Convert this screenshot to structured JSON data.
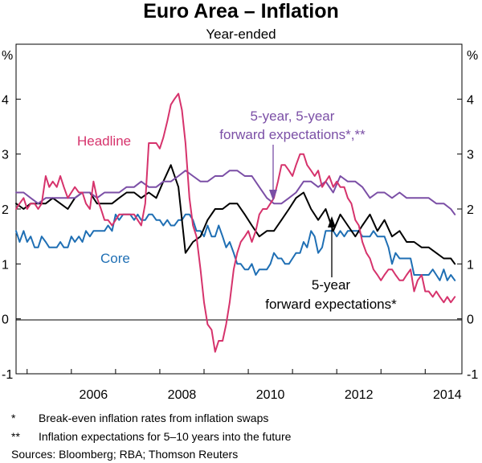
{
  "chart_data": {
    "type": "line",
    "title": "Euro Area – Inflation",
    "subtitle": "Year-ended",
    "y_unit_left": "%",
    "y_unit_right": "%",
    "ylim": [
      -1,
      5
    ],
    "y_ticks": [
      "-1",
      "0",
      "1",
      "2",
      "3",
      "4"
    ],
    "xlim": [
      2004.75,
      2014.83
    ],
    "x_ticks": [
      "2006",
      "2008",
      "2010",
      "2012",
      "2014"
    ],
    "grid": false,
    "annotations": {
      "headline": "Headline",
      "core": "Core",
      "fwd55_line1": "5-year, 5-year",
      "fwd55_line2": "forward expectations*,**",
      "fwd5_line1": "5-year",
      "fwd5_line2": "forward expectations*"
    },
    "series": [
      {
        "name": "Headline",
        "color": "#d6336c",
        "x": [
          2004.75,
          2004.83,
          2004.92,
          2005.0,
          2005.08,
          2005.17,
          2005.25,
          2005.33,
          2005.42,
          2005.5,
          2005.58,
          2005.67,
          2005.75,
          2005.83,
          2005.92,
          2006.0,
          2006.08,
          2006.17,
          2006.25,
          2006.33,
          2006.42,
          2006.5,
          2006.58,
          2006.67,
          2006.75,
          2006.83,
          2006.92,
          2007.0,
          2007.08,
          2007.17,
          2007.25,
          2007.33,
          2007.42,
          2007.5,
          2007.58,
          2007.67,
          2007.75,
          2007.83,
          2007.92,
          2008.0,
          2008.08,
          2008.17,
          2008.25,
          2008.33,
          2008.42,
          2008.5,
          2008.58,
          2008.67,
          2008.75,
          2008.83,
          2008.92,
          2009.0,
          2009.08,
          2009.17,
          2009.25,
          2009.33,
          2009.42,
          2009.5,
          2009.58,
          2009.67,
          2009.75,
          2009.83,
          2009.92,
          2010.0,
          2010.08,
          2010.17,
          2010.25,
          2010.33,
          2010.42,
          2010.5,
          2010.58,
          2010.67,
          2010.75,
          2010.83,
          2010.92,
          2011.0,
          2011.08,
          2011.17,
          2011.25,
          2011.33,
          2011.42,
          2011.5,
          2011.58,
          2011.67,
          2011.75,
          2011.83,
          2011.92,
          2012.0,
          2012.08,
          2012.17,
          2012.25,
          2012.33,
          2012.42,
          2012.5,
          2012.58,
          2012.67,
          2012.75,
          2012.83,
          2012.92,
          2013.0,
          2013.08,
          2013.17,
          2013.25,
          2013.33,
          2013.42,
          2013.5,
          2013.58,
          2013.67,
          2013.75,
          2013.83,
          2013.92,
          2014.0,
          2014.08,
          2014.17,
          2014.25,
          2014.33,
          2014.42,
          2014.5,
          2014.58,
          2014.67
        ],
        "values": [
          2.0,
          2.1,
          2.2,
          2.0,
          2.1,
          2.1,
          2.0,
          2.1,
          2.6,
          2.4,
          2.5,
          2.4,
          2.6,
          2.4,
          2.2,
          2.3,
          2.4,
          2.3,
          2.3,
          2.1,
          2.0,
          2.5,
          2.2,
          2.0,
          1.8,
          1.8,
          1.7,
          1.8,
          1.9,
          1.9,
          1.9,
          1.9,
          1.9,
          1.8,
          1.7,
          2.1,
          3.2,
          3.2,
          3.2,
          3.1,
          3.3,
          3.6,
          3.9,
          4.0,
          4.1,
          3.8,
          3.2,
          2.2,
          1.7,
          1.5,
          0.9,
          0.3,
          -0.1,
          -0.2,
          -0.6,
          -0.4,
          -0.4,
          -0.1,
          0.3,
          0.9,
          1.2,
          1.4,
          1.5,
          1.6,
          1.4,
          1.6,
          1.9,
          2.0,
          2.0,
          2.1,
          2.2,
          2.5,
          2.8,
          2.8,
          2.7,
          2.6,
          2.8,
          3.0,
          3.0,
          2.8,
          2.7,
          2.6,
          2.7,
          2.4,
          2.5,
          2.6,
          2.4,
          2.5,
          2.4,
          2.4,
          2.2,
          2.1,
          1.8,
          1.7,
          1.4,
          1.2,
          1.1,
          0.9,
          0.8,
          0.7,
          0.8,
          0.9,
          0.9,
          0.8,
          0.7,
          0.7,
          0.8,
          0.9,
          0.5,
          0.7,
          0.8,
          0.5,
          0.5,
          0.4,
          0.5,
          0.4,
          0.3,
          0.4,
          0.3,
          0.4
        ]
      },
      {
        "name": "Core",
        "color": "#1f6fb4",
        "x": [
          2004.75,
          2004.83,
          2004.92,
          2005.0,
          2005.08,
          2005.17,
          2005.25,
          2005.33,
          2005.42,
          2005.5,
          2005.58,
          2005.67,
          2005.75,
          2005.83,
          2005.92,
          2006.0,
          2006.08,
          2006.17,
          2006.25,
          2006.33,
          2006.42,
          2006.5,
          2006.58,
          2006.67,
          2006.75,
          2006.83,
          2006.92,
          2007.0,
          2007.08,
          2007.17,
          2007.25,
          2007.33,
          2007.42,
          2007.5,
          2007.58,
          2007.67,
          2007.75,
          2007.83,
          2007.92,
          2008.0,
          2008.08,
          2008.17,
          2008.25,
          2008.33,
          2008.42,
          2008.5,
          2008.58,
          2008.67,
          2008.75,
          2008.83,
          2008.92,
          2009.0,
          2009.08,
          2009.17,
          2009.25,
          2009.33,
          2009.42,
          2009.5,
          2009.58,
          2009.67,
          2009.75,
          2009.83,
          2009.92,
          2010.0,
          2010.08,
          2010.17,
          2010.25,
          2010.33,
          2010.42,
          2010.5,
          2010.58,
          2010.67,
          2010.75,
          2010.83,
          2010.92,
          2011.0,
          2011.08,
          2011.17,
          2011.25,
          2011.33,
          2011.42,
          2011.5,
          2011.58,
          2011.67,
          2011.75,
          2011.83,
          2011.92,
          2012.0,
          2012.08,
          2012.17,
          2012.25,
          2012.33,
          2012.42,
          2012.5,
          2012.58,
          2012.67,
          2012.75,
          2012.83,
          2012.92,
          2013.0,
          2013.08,
          2013.17,
          2013.25,
          2013.33,
          2013.42,
          2013.5,
          2013.58,
          2013.67,
          2013.75,
          2013.83,
          2013.92,
          2014.0,
          2014.08,
          2014.17,
          2014.25,
          2014.33,
          2014.42,
          2014.5,
          2014.58,
          2014.67
        ],
        "values": [
          1.6,
          1.4,
          1.6,
          1.4,
          1.5,
          1.3,
          1.3,
          1.5,
          1.4,
          1.3,
          1.3,
          1.3,
          1.4,
          1.3,
          1.3,
          1.5,
          1.4,
          1.5,
          1.4,
          1.6,
          1.5,
          1.6,
          1.6,
          1.6,
          1.6,
          1.7,
          1.6,
          1.9,
          1.8,
          1.9,
          1.9,
          1.9,
          1.8,
          1.9,
          1.8,
          1.8,
          1.9,
          1.9,
          1.8,
          1.8,
          1.7,
          1.8,
          1.7,
          1.7,
          1.8,
          1.8,
          1.9,
          1.9,
          1.8,
          1.6,
          1.6,
          1.5,
          1.7,
          1.5,
          1.5,
          1.7,
          1.5,
          1.3,
          1.4,
          1.2,
          1.0,
          1.0,
          0.9,
          0.9,
          1.0,
          0.8,
          0.9,
          0.9,
          0.9,
          1.0,
          1.2,
          1.1,
          1.1,
          1.0,
          1.0,
          1.1,
          1.2,
          1.2,
          1.4,
          1.3,
          1.6,
          1.5,
          1.2,
          1.3,
          1.6,
          1.6,
          1.6,
          1.5,
          1.6,
          1.5,
          1.6,
          1.6,
          1.6,
          1.6,
          1.5,
          1.5,
          1.5,
          1.6,
          1.5,
          1.5,
          1.5,
          1.3,
          1.0,
          1.2,
          1.1,
          1.1,
          1.1,
          1.1,
          0.8,
          0.8,
          0.8,
          0.8,
          0.8,
          0.9,
          0.8,
          0.7,
          0.9,
          0.7,
          0.8,
          0.7
        ]
      },
      {
        "name": "5-year, 5-year forward expectations*,**",
        "color": "#7b4fa6",
        "x": [
          2004.75,
          2004.92,
          2005.08,
          2005.25,
          2005.42,
          2005.58,
          2005.75,
          2005.92,
          2006.08,
          2006.25,
          2006.42,
          2006.58,
          2006.75,
          2006.92,
          2007.08,
          2007.25,
          2007.42,
          2007.58,
          2007.75,
          2007.92,
          2008.08,
          2008.25,
          2008.42,
          2008.58,
          2008.75,
          2008.92,
          2009.08,
          2009.25,
          2009.42,
          2009.58,
          2009.75,
          2009.92,
          2010.08,
          2010.25,
          2010.42,
          2010.58,
          2010.75,
          2010.92,
          2011.08,
          2011.25,
          2011.42,
          2011.58,
          2011.75,
          2011.92,
          2012.08,
          2012.25,
          2012.42,
          2012.58,
          2012.75,
          2012.92,
          2013.08,
          2013.25,
          2013.42,
          2013.58,
          2013.75,
          2013.92,
          2014.08,
          2014.25,
          2014.42,
          2014.58,
          2014.67
        ],
        "values": [
          2.3,
          2.3,
          2.2,
          2.1,
          2.2,
          2.2,
          2.2,
          2.2,
          2.2,
          2.3,
          2.3,
          2.2,
          2.3,
          2.3,
          2.3,
          2.4,
          2.4,
          2.5,
          2.4,
          2.4,
          2.5,
          2.5,
          2.6,
          2.7,
          2.6,
          2.5,
          2.5,
          2.6,
          2.6,
          2.7,
          2.7,
          2.6,
          2.6,
          2.4,
          2.2,
          2.1,
          2.1,
          2.2,
          2.3,
          2.5,
          2.5,
          2.4,
          2.5,
          2.3,
          2.6,
          2.5,
          2.5,
          2.4,
          2.2,
          2.3,
          2.3,
          2.2,
          2.3,
          2.2,
          2.2,
          2.2,
          2.2,
          2.1,
          2.1,
          2.0,
          1.9
        ]
      },
      {
        "name": "5-year forward expectations*",
        "color": "#000000",
        "x": [
          2004.75,
          2004.92,
          2005.08,
          2005.25,
          2005.42,
          2005.58,
          2005.75,
          2005.92,
          2006.08,
          2006.25,
          2006.42,
          2006.58,
          2006.75,
          2006.92,
          2007.08,
          2007.25,
          2007.42,
          2007.58,
          2007.75,
          2007.92,
          2008.08,
          2008.25,
          2008.42,
          2008.58,
          2008.75,
          2008.92,
          2009.08,
          2009.25,
          2009.42,
          2009.58,
          2009.75,
          2009.92,
          2010.08,
          2010.25,
          2010.42,
          2010.58,
          2010.75,
          2010.92,
          2011.08,
          2011.25,
          2011.42,
          2011.58,
          2011.75,
          2011.92,
          2012.08,
          2012.25,
          2012.42,
          2012.58,
          2012.75,
          2012.92,
          2013.08,
          2013.25,
          2013.42,
          2013.58,
          2013.75,
          2013.92,
          2014.08,
          2014.25,
          2014.42,
          2014.58,
          2014.67
        ],
        "values": [
          2.1,
          2.0,
          2.1,
          2.1,
          2.1,
          2.2,
          2.1,
          2.0,
          2.2,
          2.3,
          2.3,
          2.1,
          2.1,
          2.1,
          2.2,
          2.3,
          2.3,
          2.2,
          2.3,
          2.2,
          2.5,
          2.8,
          2.4,
          1.2,
          1.4,
          1.5,
          1.8,
          2.0,
          2.0,
          2.1,
          2.1,
          1.9,
          1.7,
          1.5,
          1.6,
          1.6,
          1.8,
          2.0,
          2.2,
          2.3,
          2.0,
          1.8,
          2.0,
          1.6,
          1.9,
          1.7,
          1.5,
          1.7,
          1.9,
          1.6,
          1.8,
          1.5,
          1.6,
          1.4,
          1.4,
          1.3,
          1.3,
          1.2,
          1.1,
          1.1,
          1.0
        ]
      }
    ]
  },
  "footnotes": [
    {
      "mark": "*",
      "text": "Break-even inflation rates from inflation swaps"
    },
    {
      "mark": "**",
      "text": "Inflation expectations for 5–10 years into the future"
    }
  ],
  "sources": "Sources:  Bloomberg; RBA; Thomson Reuters"
}
